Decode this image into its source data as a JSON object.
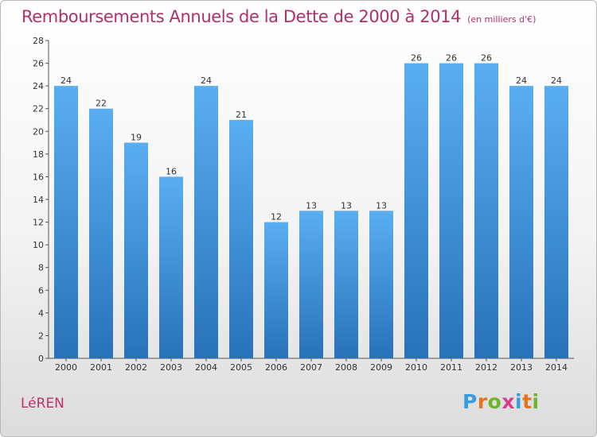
{
  "header": {
    "title": "Remboursements Annuels de la Dette de 2000 à 2014",
    "unit": "(en milliers d'€)"
  },
  "footer": {
    "commune": "LéREN",
    "logo": {
      "letters": [
        "P",
        "r",
        "o",
        "x",
        "i",
        "t",
        "i"
      ],
      "colors": [
        "#3a9be0",
        "#e8731d",
        "#6fb52c",
        "#d83b8a",
        "#3a9be0",
        "#e8731d",
        "#6fb52c"
      ]
    }
  },
  "chart_data": {
    "type": "bar",
    "title": "Remboursements Annuels de la Dette de 2000 à 2014",
    "ylabel": "",
    "xlabel": "",
    "categories": [
      "2000",
      "2001",
      "2002",
      "2003",
      "2004",
      "2005",
      "2006",
      "2007",
      "2008",
      "2009",
      "2010",
      "2011",
      "2012",
      "2013",
      "2014"
    ],
    "values": [
      24,
      22,
      19,
      16,
      24,
      21,
      12,
      13,
      13,
      13,
      26,
      26,
      26,
      24,
      24
    ],
    "ylim": [
      0,
      28
    ],
    "yticks": [
      0,
      2,
      4,
      6,
      8,
      10,
      12,
      14,
      16,
      18,
      20,
      22,
      24,
      26,
      28
    ],
    "grid": false,
    "colors": {
      "bar_top": "#5aaef0",
      "bar_bottom": "#2872b8",
      "axis": "#555555"
    }
  }
}
